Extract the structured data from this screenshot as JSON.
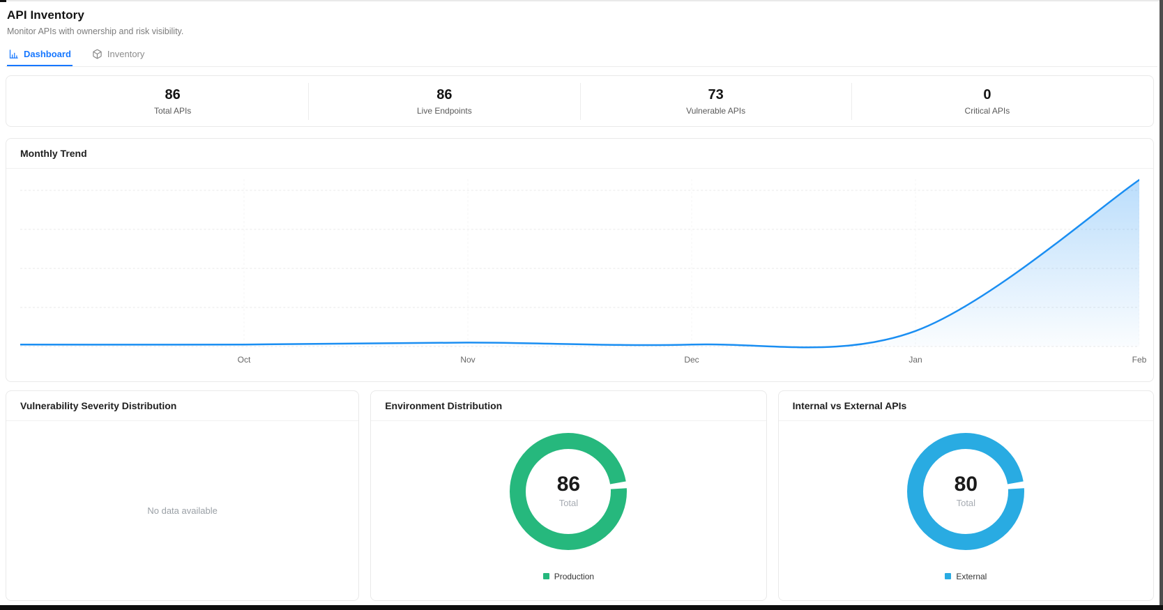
{
  "page": {
    "title": "API Inventory",
    "subtitle": "Monitor APIs with ownership and risk visibility."
  },
  "tabs": [
    {
      "label": "Dashboard",
      "icon": "bar-chart-icon",
      "active": true
    },
    {
      "label": "Inventory",
      "icon": "package-icon",
      "active": false
    }
  ],
  "stats": [
    {
      "value": "86",
      "label": "Total APIs"
    },
    {
      "value": "86",
      "label": "Live Endpoints"
    },
    {
      "value": "73",
      "label": "Vulnerable APIs"
    },
    {
      "value": "0",
      "label": "Critical APIs"
    }
  ],
  "colors": {
    "accent": "#1677ff",
    "trend_line": "#1a8ef2",
    "green": "#26b87d",
    "sky_blue": "#29abe2"
  },
  "chart_data": [
    {
      "type": "area",
      "title": "Monthly Trend",
      "x": [
        "",
        "Oct",
        "Nov",
        "Dec",
        "Jan",
        "Feb"
      ],
      "values": [
        1,
        1,
        2,
        1,
        8,
        86
      ],
      "ylim": [
        0,
        90
      ],
      "yticks_shown": false,
      "grid": "dashed",
      "legend": "none",
      "line_color": "#1a8ef2",
      "fill": "light-blue gradient to transparent"
    },
    {
      "type": "pie",
      "title": "Vulnerability Severity Distribution",
      "segments": [],
      "empty_text": "No data available"
    },
    {
      "type": "pie",
      "subtype": "donut",
      "title": "Environment Distribution",
      "segments": [
        {
          "label": "Production",
          "value": 86,
          "color": "#26b87d"
        }
      ],
      "center_value": "86",
      "center_label": "Total",
      "legend_position": "bottom"
    },
    {
      "type": "pie",
      "subtype": "donut",
      "title": "Internal vs External APIs",
      "segments": [
        {
          "label": "External",
          "value": 80,
          "color": "#29abe2"
        }
      ],
      "center_value": "80",
      "center_label": "Total",
      "legend_position": "bottom"
    }
  ]
}
